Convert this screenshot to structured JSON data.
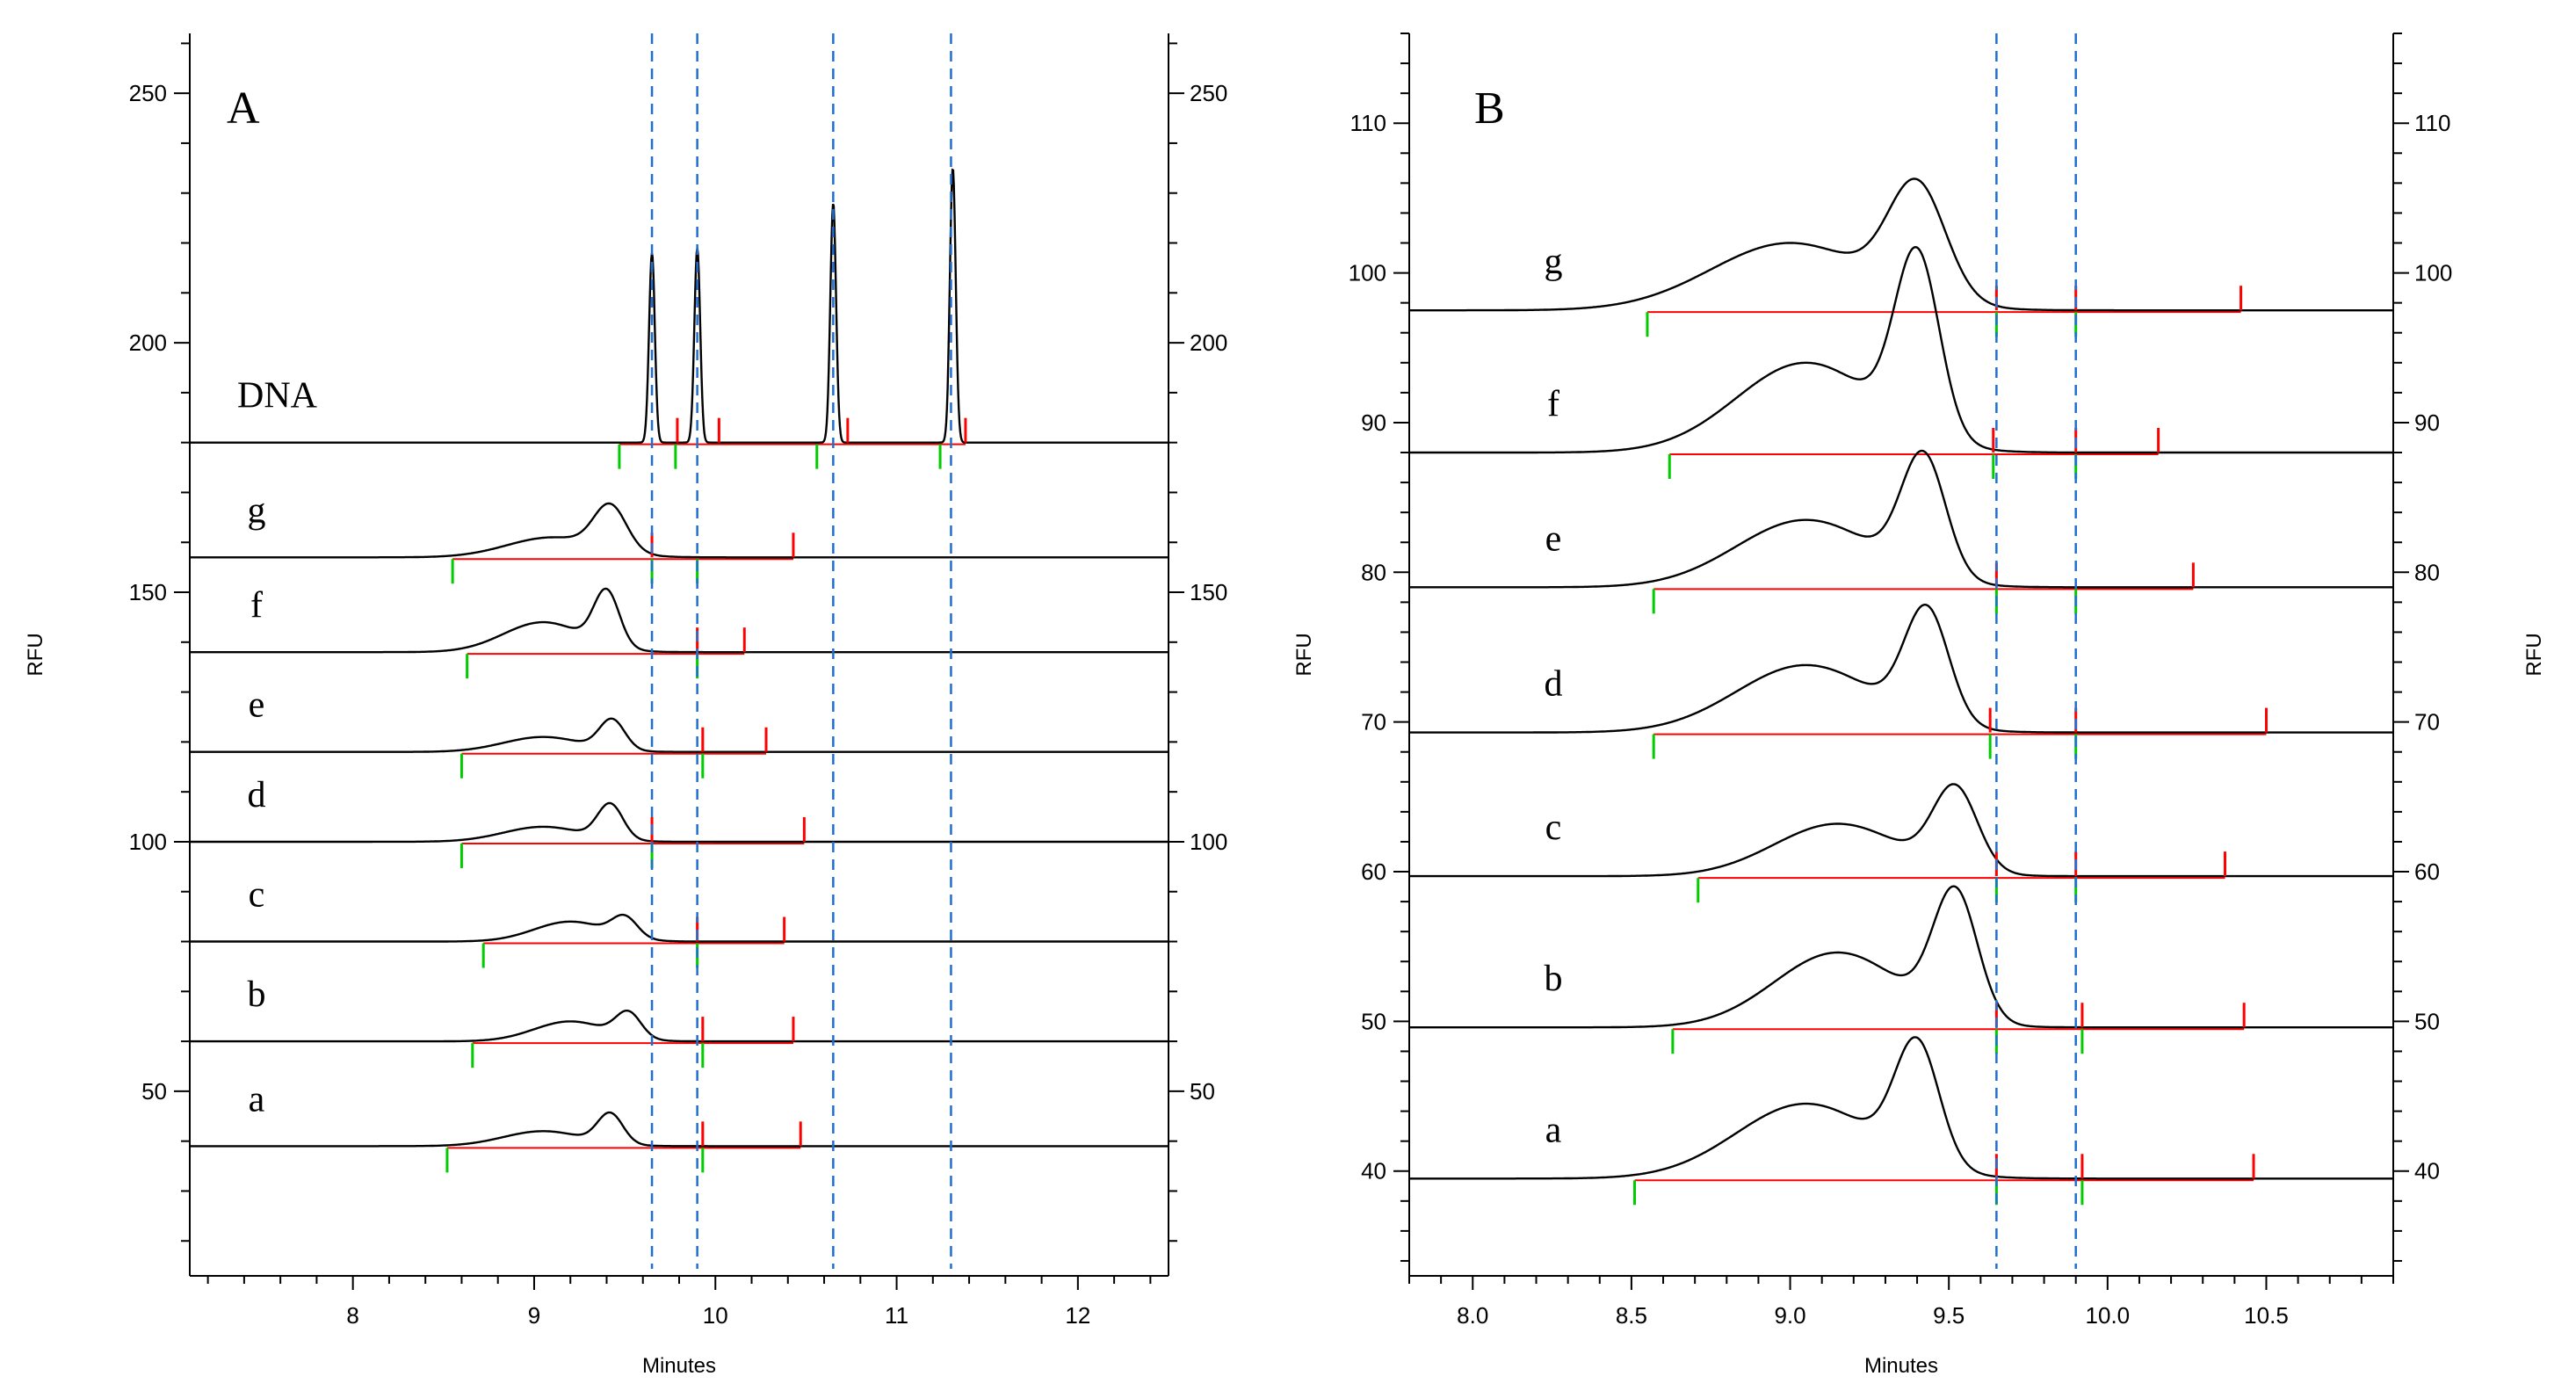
{
  "chart_data": [
    {
      "type": "line",
      "panel_label": "A",
      "xlabel": "Minutes",
      "ylabel": "RFU",
      "xlim": [
        7.1,
        12.5
      ],
      "ylim": [
        13,
        262
      ],
      "x_ticks": [
        8,
        9,
        10,
        11,
        12
      ],
      "y_ticks": [
        50,
        100,
        150,
        200,
        250
      ],
      "x_minor_step": 0.2,
      "y_minor_step": 10,
      "reference_lines": [
        9.65,
        9.9,
        10.65,
        11.3
      ],
      "series": [
        {
          "name": "DNA",
          "baseline": 180,
          "peaks": [
            [
              9.65,
              38,
              0.016
            ],
            [
              9.9,
              39,
              0.016
            ],
            [
              10.65,
              48,
              0.016
            ],
            [
              11.31,
              55,
              0.016
            ]
          ],
          "green_marks": [
            9.47,
            9.78,
            10.56,
            11.24
          ],
          "red_marks": [
            9.79,
            10.02,
            10.73,
            11.38
          ]
        },
        {
          "name": "g",
          "baseline": 157,
          "peaks": [
            [
              9.1,
              4,
              0.25
            ],
            [
              9.42,
              9,
              0.09
            ]
          ],
          "green_marks": [
            8.55,
            9.65,
            9.9
          ],
          "red_marks": [
            9.65,
            10.43
          ]
        },
        {
          "name": "f",
          "baseline": 138,
          "peaks": [
            [
              9.05,
              6,
              0.22
            ],
            [
              9.4,
              11,
              0.07
            ]
          ],
          "green_marks": [
            8.63,
            9.9
          ],
          "red_marks": [
            9.9,
            10.16
          ]
        },
        {
          "name": "e",
          "baseline": 118,
          "peaks": [
            [
              9.05,
              3,
              0.22
            ],
            [
              9.43,
              6,
              0.07
            ]
          ],
          "green_marks": [
            8.6,
            9.93
          ],
          "red_marks": [
            9.93,
            10.28
          ]
        },
        {
          "name": "d",
          "baseline": 100,
          "peaks": [
            [
              9.05,
              3,
              0.22
            ],
            [
              9.42,
              7,
              0.07
            ]
          ],
          "green_marks": [
            8.6,
            9.65
          ],
          "red_marks": [
            9.65,
            10.49
          ]
        },
        {
          "name": "c",
          "baseline": 80,
          "peaks": [
            [
              9.2,
              4,
              0.2
            ],
            [
              9.5,
              4,
              0.07
            ]
          ],
          "green_marks": [
            8.72,
            9.9
          ],
          "red_marks": [
            9.9,
            10.38
          ]
        },
        {
          "name": "b",
          "baseline": 60,
          "peaks": [
            [
              9.2,
              4,
              0.2
            ],
            [
              9.52,
              5,
              0.07
            ]
          ],
          "green_marks": [
            8.66,
            9.93
          ],
          "red_marks": [
            9.93,
            10.43
          ]
        },
        {
          "name": "a",
          "baseline": 39,
          "peaks": [
            [
              9.05,
              3,
              0.22
            ],
            [
              9.42,
              6,
              0.07
            ]
          ],
          "green_marks": [
            8.52,
            9.93
          ],
          "red_marks": [
            9.93,
            10.47
          ]
        }
      ]
    },
    {
      "type": "line",
      "panel_label": "B",
      "xlabel": "Minutes",
      "ylabel": "RFU",
      "xlim": [
        7.8,
        10.9
      ],
      "ylim": [
        33,
        116
      ],
      "x_ticks": [
        8.0,
        8.5,
        9.0,
        9.5,
        10.0,
        10.5
      ],
      "y_ticks": [
        40,
        50,
        60,
        70,
        80,
        90,
        100,
        110
      ],
      "x_minor_step": 0.1,
      "y_minor_step": 2,
      "reference_lines": [
        9.65,
        9.9
      ],
      "series": [
        {
          "name": "g",
          "baseline": 97.5,
          "peaks": [
            [
              9.0,
              4.5,
              0.25
            ],
            [
              9.4,
              7.5,
              0.09
            ]
          ],
          "green_marks": [
            8.55,
            9.65,
            9.9
          ],
          "red_marks": [
            9.65,
            9.9,
            10.42
          ]
        },
        {
          "name": "f",
          "baseline": 88,
          "peaks": [
            [
              9.05,
              6,
              0.22
            ],
            [
              9.4,
              12,
              0.07
            ]
          ],
          "green_marks": [
            8.62,
            9.64,
            9.9
          ],
          "red_marks": [
            9.64,
            9.9,
            10.16
          ]
        },
        {
          "name": "e",
          "baseline": 79,
          "peaks": [
            [
              9.05,
              4.5,
              0.22
            ],
            [
              9.42,
              8,
              0.07
            ]
          ],
          "green_marks": [
            8.57,
            9.65,
            9.9
          ],
          "red_marks": [
            9.65,
            10.27
          ]
        },
        {
          "name": "d",
          "baseline": 69.3,
          "peaks": [
            [
              9.05,
              4.5,
              0.22
            ],
            [
              9.43,
              7.5,
              0.07
            ]
          ],
          "green_marks": [
            8.57,
            9.63,
            9.9
          ],
          "red_marks": [
            9.63,
            9.9,
            10.5
          ]
        },
        {
          "name": "c",
          "baseline": 59.7,
          "peaks": [
            [
              9.15,
              3.5,
              0.2
            ],
            [
              9.52,
              5.5,
              0.07
            ]
          ],
          "green_marks": [
            8.71,
            9.65,
            9.9
          ],
          "red_marks": [
            9.65,
            9.9,
            10.37
          ]
        },
        {
          "name": "b",
          "baseline": 49.6,
          "peaks": [
            [
              9.15,
              5,
              0.2
            ],
            [
              9.52,
              8.5,
              0.07
            ]
          ],
          "green_marks": [
            8.63,
            9.65,
            9.92
          ],
          "red_marks": [
            9.65,
            9.92,
            10.43
          ]
        },
        {
          "name": "a",
          "baseline": 39.5,
          "peaks": [
            [
              9.05,
              5,
              0.22
            ],
            [
              9.4,
              8,
              0.07
            ]
          ],
          "green_marks": [
            8.51,
            9.65,
            9.92
          ],
          "red_marks": [
            9.65,
            9.92,
            10.46
          ]
        }
      ]
    }
  ],
  "colors": {
    "trace": "#000000",
    "integration_baseline": "#ff0000",
    "start_mark": "#00cc00",
    "end_mark": "#ff0000",
    "reference_line": "#1f6fd0"
  }
}
